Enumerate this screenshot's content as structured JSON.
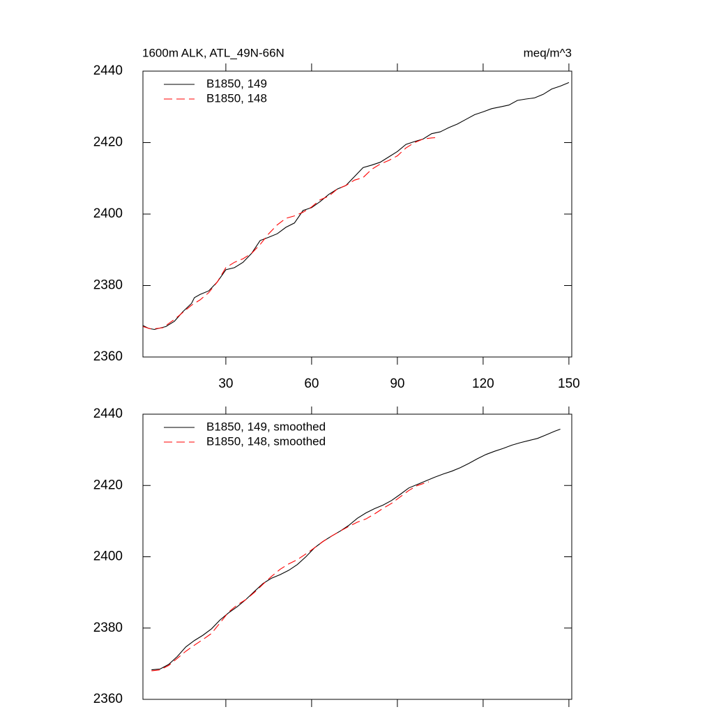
{
  "chart_data": [
    {
      "type": "line",
      "title": "1600m ALK, ATL_49N-66N",
      "units": "meq/m^3",
      "xlim": [
        1,
        151
      ],
      "xticks": [
        30,
        60,
        90,
        120,
        150
      ],
      "ylim": [
        2360,
        2440
      ],
      "yticks": [
        2360,
        2380,
        2400,
        2420,
        2440
      ],
      "series": [
        {
          "name": "B1850, 149",
          "color": "#000000",
          "x": [
            1,
            3,
            5,
            9,
            12,
            15,
            18,
            19,
            21,
            24,
            27,
            30,
            33,
            36,
            39,
            42,
            45,
            48,
            51,
            54,
            57,
            60,
            63,
            66,
            69,
            72,
            75,
            78,
            81,
            84,
            87,
            90,
            93,
            96,
            99,
            102,
            105,
            108,
            111,
            114,
            117,
            120,
            123,
            126,
            129,
            132,
            135,
            138,
            141,
            144,
            147,
            150
          ],
          "values": [
            2368.8,
            2368,
            2367.7,
            2368.5,
            2370,
            2372.7,
            2375,
            2376.6,
            2377.5,
            2378.5,
            2381,
            2384.4,
            2385,
            2386.5,
            2389,
            2392.6,
            2393.5,
            2394.5,
            2396.3,
            2397.5,
            2401,
            2401.8,
            2403.5,
            2405.5,
            2407,
            2408,
            2410.5,
            2413,
            2413.7,
            2414.5,
            2416,
            2417.5,
            2419.5,
            2420.3,
            2421,
            2422.5,
            2423,
            2424.2,
            2425.2,
            2426.5,
            2427.8,
            2428.6,
            2429.5,
            2430,
            2430.5,
            2431.8,
            2432.2,
            2432.5,
            2433.5,
            2435,
            2435.8,
            2436.8
          ]
        },
        {
          "name": "B1850, 148",
          "color": "#ff0000",
          "x": [
            1,
            4,
            8,
            12,
            15,
            18,
            21,
            24,
            27,
            30,
            33,
            36,
            39,
            42,
            45,
            48,
            51,
            54,
            57,
            60,
            63,
            66,
            69,
            72,
            75,
            78,
            81,
            84,
            87,
            90,
            93,
            96,
            99,
            102,
            104
          ],
          "values": [
            2368.5,
            2367.8,
            2368.2,
            2370.5,
            2372.5,
            2374.5,
            2376,
            2378,
            2381,
            2385,
            2386.5,
            2387.5,
            2389,
            2391.5,
            2394.5,
            2397,
            2398.8,
            2399.5,
            2400.5,
            2402,
            2404,
            2405,
            2407,
            2408,
            2409.5,
            2410.2,
            2412.5,
            2414,
            2415,
            2416.3,
            2418.5,
            2420,
            2421,
            2421.3,
            2421.4
          ]
        }
      ]
    },
    {
      "type": "line",
      "xlim": [
        1,
        151
      ],
      "xticks": [
        30,
        60,
        90,
        120,
        150
      ],
      "ylim": [
        2360,
        2440
      ],
      "yticks": [
        2360,
        2380,
        2400,
        2420,
        2440
      ],
      "series": [
        {
          "name": "B1850, 149, smoothed",
          "color": "#000000",
          "x": [
            4,
            7,
            10,
            13,
            16,
            19,
            22,
            25,
            28,
            31,
            34,
            37,
            40,
            43,
            46,
            49,
            52,
            55,
            58,
            61,
            64,
            67,
            70,
            73,
            76,
            79,
            82,
            85,
            88,
            91,
            94,
            97,
            100,
            103,
            106,
            109,
            112,
            115,
            118,
            121,
            124,
            127,
            130,
            133,
            136,
            139,
            142,
            145,
            147
          ],
          "values": [
            2368.3,
            2368.5,
            2369.8,
            2372,
            2374.7,
            2376.5,
            2378,
            2379.8,
            2382.3,
            2384.3,
            2386,
            2388,
            2390.3,
            2392.5,
            2394,
            2395,
            2396.2,
            2397.8,
            2400,
            2402.5,
            2404.3,
            2405.8,
            2407.2,
            2408.8,
            2410.8,
            2412.3,
            2413.5,
            2414.5,
            2415.8,
            2417.5,
            2419.3,
            2420.3,
            2421.3,
            2422.3,
            2423.2,
            2424,
            2425,
            2426.2,
            2427.5,
            2428.7,
            2429.6,
            2430.4,
            2431.3,
            2432,
            2432.6,
            2433.2,
            2434.2,
            2435.2,
            2435.8
          ]
        },
        {
          "name": "B1850, 148, smoothed",
          "color": "#ff0000",
          "x": [
            4,
            7,
            10,
            13,
            16,
            19,
            22,
            25,
            28,
            31,
            34,
            37,
            40,
            43,
            46,
            49,
            52,
            55,
            58,
            61,
            64,
            67,
            70,
            73,
            76,
            79,
            82,
            85,
            88,
            91,
            94,
            97,
            100,
            101
          ],
          "values": [
            2368,
            2368.3,
            2369.5,
            2371.5,
            2373.5,
            2375.2,
            2376.8,
            2378.5,
            2381.5,
            2384.5,
            2386.5,
            2388,
            2390,
            2392.3,
            2394.5,
            2396.5,
            2398,
            2399.2,
            2400.8,
            2402.5,
            2404.3,
            2405.8,
            2407.2,
            2408.5,
            2409.7,
            2410.6,
            2412,
            2413.6,
            2415,
            2416.8,
            2418.6,
            2420,
            2420.8,
            2421
          ]
        }
      ]
    }
  ]
}
